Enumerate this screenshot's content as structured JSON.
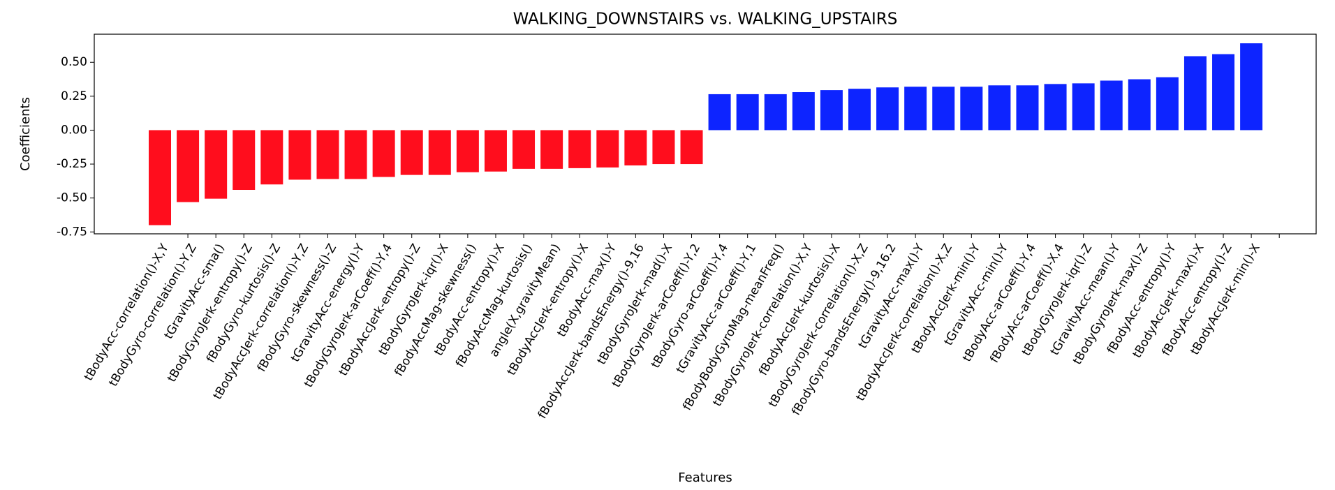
{
  "chart_data": {
    "type": "bar",
    "title": "WALKING_DOWNSTAIRS vs. WALKING_UPSTAIRS",
    "xlabel": "Features",
    "ylabel": "Coefficients",
    "categories": [
      "tBodyAcc-correlation()-X,Y",
      "tBodyGyro-correlation()-Y,Z",
      "tGravityAcc-sma()",
      "tBodyGyroJerk-entropy()-Z",
      "fBodyGyro-kurtosis()-Z",
      "tBodyAccJerk-correlation()-Y,Z",
      "fBodyGyro-skewness()-Z",
      "tGravityAcc-energy()-Y",
      "tBodyGyroJerk-arCoeff()-Y,4",
      "tBodyAccJerk-entropy()-Z",
      "tBodyGyroJerk-iqr()-X",
      "fBodyAccMag-skewness()",
      "tBodyAcc-entropy()-X",
      "fBodyAccMag-kurtosis()",
      "angle(X,gravityMean)",
      "tBodyAccJerk-entropy()-X",
      "tBodyAcc-max()-Y",
      "fBodyAccJerk-bandsEnergy()-9,16",
      "tBodyGyroJerk-mad()-X",
      "tBodyGyroJerk-arCoeff()-Y,2",
      "tBodyGyro-arCoeff()-Y,4",
      "tGravityAcc-arCoeff()-Y,1",
      "fBodyBodyGyroMag-meanFreq()",
      "tBodyGyroJerk-correlation()-X,Y",
      "fBodyAccJerk-kurtosis()-X",
      "tBodyGyroJerk-correlation()-X,Z",
      "fBodyGyro-bandsEnergy()-9,16.2",
      "tGravityAcc-max()-Y",
      "tBodyAccJerk-correlation()-X,Z",
      "tBodyAccJerk-min()-Y",
      "tGravityAcc-min()-Y",
      "tBodyAcc-arCoeff()-Y,4",
      "fBodyAcc-arCoeff()-X,4",
      "tBodyGyroJerk-iqr()-Z",
      "tGravityAcc-mean()-Y",
      "tBodyGyroJerk-max()-Z",
      "fBodyAcc-entropy()-Y",
      "tBodyAccJerk-max()-X",
      "fBodyAcc-entropy()-Z",
      "tBodyAccJerk-min()-X"
    ],
    "values": [
      -0.7,
      -0.53,
      -0.505,
      -0.44,
      -0.4,
      -0.365,
      -0.36,
      -0.36,
      -0.345,
      -0.33,
      -0.33,
      -0.31,
      -0.305,
      -0.285,
      -0.285,
      -0.28,
      -0.275,
      -0.26,
      -0.25,
      -0.25,
      0.265,
      0.265,
      0.265,
      0.28,
      0.295,
      0.305,
      0.315,
      0.32,
      0.32,
      0.32,
      0.33,
      0.33,
      0.34,
      0.345,
      0.365,
      0.375,
      0.39,
      0.545,
      0.56,
      0.64
    ],
    "color_negative": "#ff0d1d",
    "color_positive": "#0d24ff",
    "ylim": [
      -0.764,
      0.707
    ],
    "yticks": [
      {
        "value": -0.75,
        "label": "-0.75"
      },
      {
        "value": -0.5,
        "label": "-0.50"
      },
      {
        "value": -0.25,
        "label": "-0.25"
      },
      {
        "value": 0,
        "label": "0.00"
      },
      {
        "value": 0.25,
        "label": "0.25"
      },
      {
        "value": 0.5,
        "label": "0.50"
      }
    ],
    "grid": false
  }
}
